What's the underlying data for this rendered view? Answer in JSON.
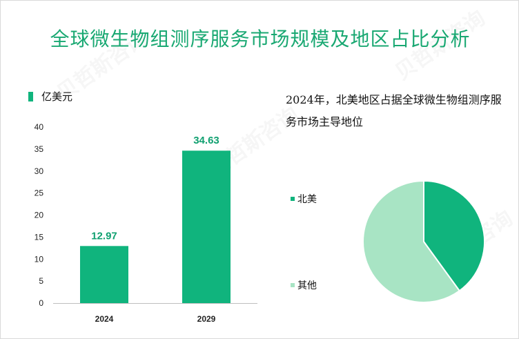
{
  "title": "全球微生物组测序服务市场规模及地区占比分析",
  "unit_label": "亿美元",
  "watermark": "贝哲斯咨询",
  "colors": {
    "accent": "#10b47d",
    "light": "#a8e4c4",
    "title": "#19a872"
  },
  "chart_data": [
    {
      "type": "bar",
      "title": "",
      "xlabel": "",
      "ylabel": "亿美元",
      "categories": [
        "2024",
        "2029"
      ],
      "values": [
        12.97,
        34.63
      ],
      "value_labels": [
        "12.97",
        "34.63"
      ],
      "ylim": [
        0,
        40
      ],
      "yticks": [
        "0",
        "5",
        "10",
        "15",
        "20",
        "25",
        "30",
        "35",
        "40"
      ],
      "grid": false,
      "legend": "top-left"
    },
    {
      "type": "pie",
      "title": "2024年，北美地区占据全球微生物组测序服务市场主导地位",
      "labels": [
        "北美",
        "其他"
      ],
      "values": [
        40,
        60
      ],
      "colors": [
        "#10b47d",
        "#a8e4c4"
      ],
      "legend": "left"
    }
  ]
}
